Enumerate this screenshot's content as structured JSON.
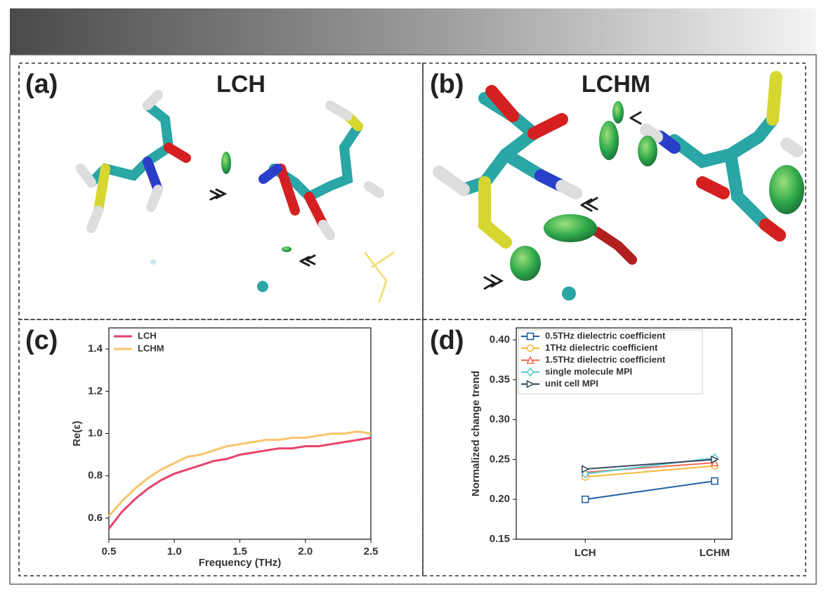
{
  "panels": [
    {
      "label": "(a)",
      "title": "LCH"
    },
    {
      "label": "(b)",
      "title": "LCHM"
    },
    {
      "label": "(c)"
    },
    {
      "label": "(d)"
    }
  ],
  "chart_data": [
    {
      "type": "line",
      "xlabel": "Frequency (THz)",
      "ylabel": "Re(ε)",
      "x": [
        0.5,
        0.6,
        0.7,
        0.8,
        0.9,
        1.0,
        1.1,
        1.2,
        1.3,
        1.4,
        1.5,
        1.6,
        1.7,
        1.8,
        1.9,
        2.0,
        2.1,
        2.2,
        2.3,
        2.4,
        2.5
      ],
      "series": [
        {
          "name": "LCH",
          "color": "#e8426b",
          "values": [
            0.55,
            0.63,
            0.69,
            0.74,
            0.78,
            0.81,
            0.83,
            0.85,
            0.87,
            0.88,
            0.9,
            0.91,
            0.92,
            0.93,
            0.93,
            0.94,
            0.94,
            0.95,
            0.96,
            0.97,
            0.98
          ]
        },
        {
          "name": "LCHM",
          "color": "#f9c46b",
          "values": [
            0.61,
            0.68,
            0.74,
            0.79,
            0.83,
            0.86,
            0.89,
            0.9,
            0.92,
            0.94,
            0.95,
            0.96,
            0.97,
            0.97,
            0.98,
            0.98,
            0.99,
            1.0,
            1.0,
            1.01,
            1.0
          ]
        }
      ],
      "xlim": [
        0.5,
        2.5
      ],
      "xticks": [
        0.5,
        {
          "value": 1,
          "label": "1.0"
        },
        1.5,
        {
          "value": 2,
          "label": "2.0"
        },
        2.5
      ],
      "ylim": [
        0.5,
        1.5
      ],
      "yticks": [
        0.6,
        0.8,
        {
          "value": 1,
          "label": "1.0"
        },
        1.2,
        1.4
      ],
      "legend": "upper-left"
    },
    {
      "type": "line",
      "ylabel": "Normalized change trend",
      "categories": [
        "LCH",
        "LCHM"
      ],
      "series": [
        {
          "name": "0.5THz dielectric coefficient",
          "color": "#1f5fa8",
          "marker": "square",
          "values": [
            0.2,
            0.223
          ]
        },
        {
          "name": "1THz dielectric coefficient",
          "color": "#f9b93a",
          "marker": "circle",
          "values": [
            0.228,
            0.242
          ]
        },
        {
          "name": "1.5THz dielectric coefficient",
          "color": "#ee6e52",
          "marker": "triangle",
          "values": [
            0.234,
            0.246
          ]
        },
        {
          "name": "single molecule MPI",
          "color": "#5bc8d0",
          "marker": "diamond",
          "values": [
            0.232,
            0.252
          ]
        },
        {
          "name": "unit cell MPI",
          "color": "#3a4a60",
          "marker": "right-triangle",
          "values": [
            0.238,
            0.25
          ]
        }
      ],
      "ylim": [
        0.15,
        0.415
      ],
      "yticks": [
        0.15,
        {
          "value": 0.2,
          "label": "0.20"
        },
        0.25,
        {
          "value": 0.3,
          "label": "0.30"
        },
        0.35,
        {
          "value": 0.4,
          "label": "0.40"
        }
      ],
      "legend": "upper-left"
    }
  ]
}
